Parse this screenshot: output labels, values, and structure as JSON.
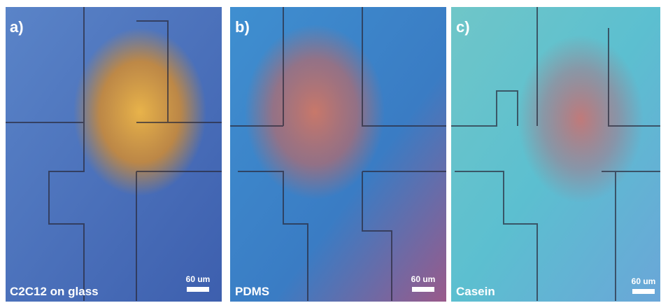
{
  "panels": [
    {
      "label": "a)",
      "caption": "C2C12 on glass",
      "scale_label": "60 um"
    },
    {
      "label": "b)",
      "caption": "PDMS",
      "scale_label": "60 um"
    },
    {
      "label": "c)",
      "caption": "Casein",
      "scale_label": "60 um"
    }
  ]
}
